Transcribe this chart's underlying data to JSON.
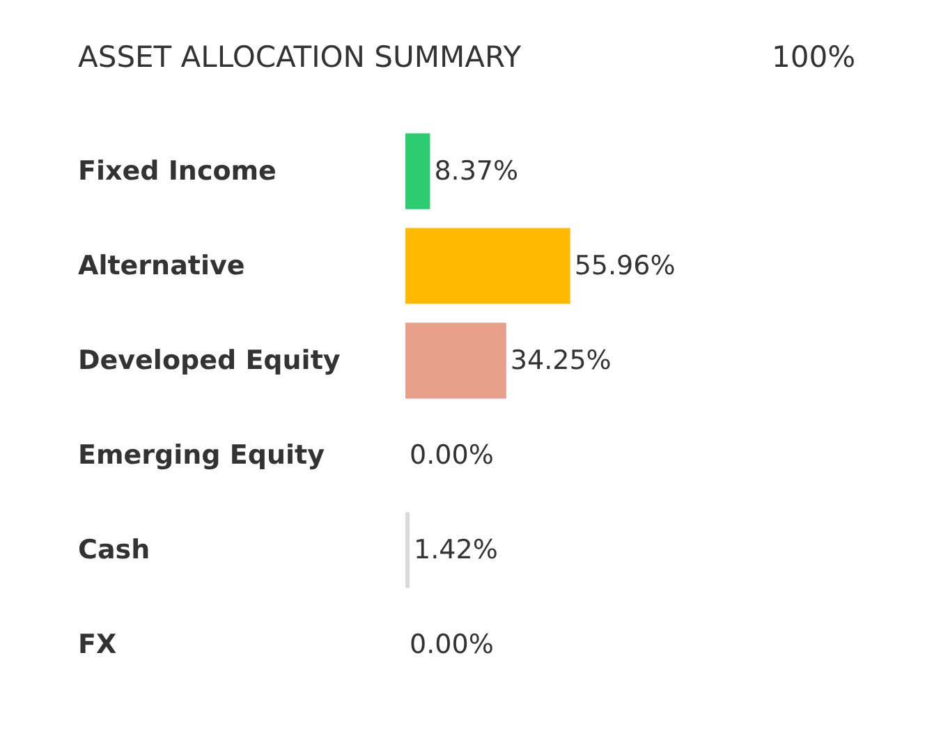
{
  "chart_data": {
    "type": "bar",
    "orientation": "horizontal",
    "title": "ASSET ALLOCATION SUMMARY",
    "annotations": [
      "100%"
    ],
    "categories": [
      "Fixed Income",
      "Alternative",
      "Developed Equity",
      "Emerging Equity",
      "Cash",
      "FX"
    ],
    "values": [
      8.37,
      55.96,
      34.25,
      0.0,
      1.42,
      0.0
    ],
    "colors": [
      "#2ecc71",
      "#ffb900",
      "#e8a08a",
      "#e8a08a",
      "#d9d9d9",
      "#d9d9d9"
    ],
    "value_labels": [
      "8.37%",
      "55.96%",
      "34.25%",
      "0.00%",
      "1.42%",
      "0.00%"
    ],
    "legend": false
  }
}
